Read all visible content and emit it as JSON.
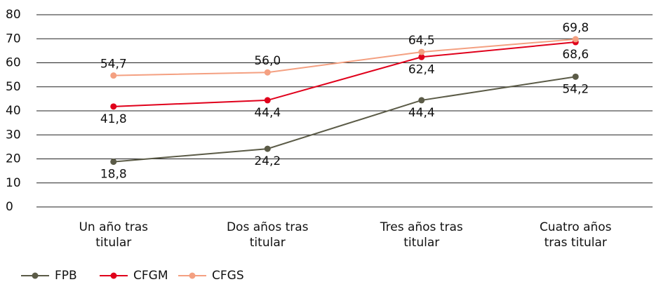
{
  "chart_data": {
    "type": "line",
    "categories": [
      "Un año tras titular",
      "Dos años tras titular",
      "Tres años tras titular",
      "Cuatro años tras titular"
    ],
    "series": [
      {
        "name": "FPB",
        "color": "#5b5b47",
        "values": [
          18.8,
          24.2,
          44.4,
          54.2
        ],
        "value_labels": [
          "18,8",
          "24,2",
          "44,4",
          "54,2"
        ],
        "label_position": "below"
      },
      {
        "name": "CFGM",
        "color": "#e0001b",
        "values": [
          41.8,
          44.4,
          62.4,
          68.6
        ],
        "value_labels": [
          "41,8",
          "44,4",
          "62,4",
          "68,6"
        ],
        "label_position": "below"
      },
      {
        "name": "CFGS",
        "color": "#f4a081",
        "values": [
          54.7,
          56.0,
          64.5,
          69.8
        ],
        "value_labels": [
          "54,7",
          "56,0",
          "64,5",
          "69,8"
        ],
        "label_position": "above"
      }
    ],
    "ylim": [
      0,
      80
    ],
    "yticks": [
      0,
      10,
      20,
      30,
      40,
      50,
      60,
      70,
      80
    ],
    "grid": true,
    "legend": "bottom-left"
  }
}
